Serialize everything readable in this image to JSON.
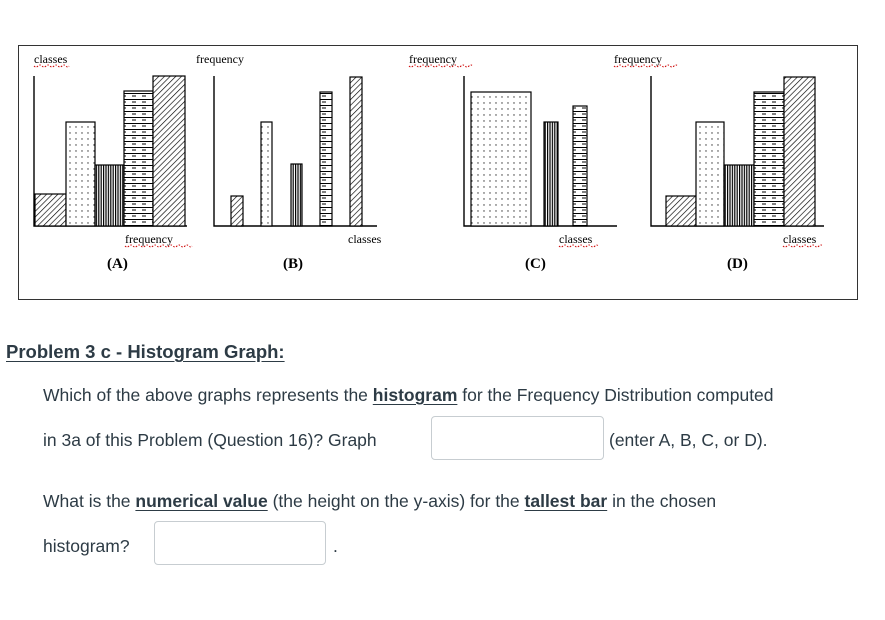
{
  "figure": {
    "graphs": [
      {
        "label": "(A)",
        "top_axis_label": "classes",
        "bottom_axis_label": "frequency"
      },
      {
        "label": "(B)",
        "top_axis_label": "frequency",
        "bottom_axis_label": "classes"
      },
      {
        "label": "(C)",
        "top_axis_label": "frequency",
        "bottom_axis_label": "classes"
      },
      {
        "label": "(D)",
        "top_axis_label": "frequency",
        "bottom_axis_label": "classes"
      }
    ]
  },
  "problem": {
    "heading": "Problem 3 c - Histogram Graph:",
    "q1": {
      "prefix": "Which of the above graphs represents the ",
      "emphasis": "histogram",
      "suffix": " for the Frequency Distribution computed",
      "line2_prefix": "in 3a of this Problem (Question 16)? Graph ",
      "line2_suffix": "(enter A, B, C, or D).",
      "answer_value": ""
    },
    "q2": {
      "prefix": "What is the ",
      "emphasis1": "numerical value",
      "middle": " (the height on the y-axis) for the ",
      "emphasis2": "tallest bar",
      "suffix": " in the chosen",
      "line2_prefix": "histogram?",
      "line2_suffix": ".",
      "answer_value": ""
    }
  }
}
